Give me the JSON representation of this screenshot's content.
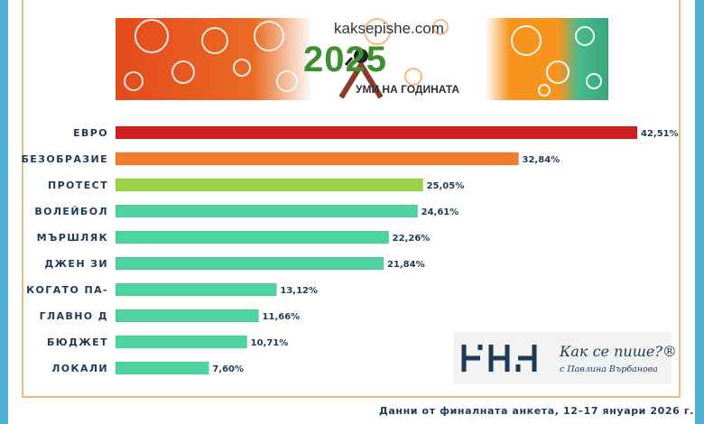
{
  "banner": {
    "site": "kaksepishe.com",
    "year": "2025",
    "tagline": "УМИ НА ГОДИНАТА"
  },
  "logo": {
    "title": "Как се пише?®",
    "subtitle": "с Павлина Върбанова"
  },
  "footer": "Данни от финалната анкета, 12–17 януари 2026 г.",
  "colors": {
    "background": "#4fb0d3",
    "frame": "#f0b98a",
    "text": "#1f3a56",
    "bar_red": "#d01f1f",
    "bar_orange": "#ef7d2a",
    "bar_lime": "#9bd24a",
    "bar_teal": "#4ed3a0"
  },
  "chart_data": {
    "type": "bar",
    "orientation": "horizontal",
    "categories": [
      "ЕВРО",
      "БЕЗОБРАЗИЕ",
      "ПРОТЕСТ",
      "ВОЛЕЙБОЛ",
      "МЪРШЛЯК",
      "ДЖЕН ЗИ",
      "КОГАТО ПА-",
      "ГЛАВНО Д",
      "БЮДЖЕТ",
      "ЛОКАЛИ"
    ],
    "values": [
      42.51,
      32.84,
      25.05,
      24.61,
      22.26,
      21.84,
      13.12,
      11.66,
      10.71,
      7.6
    ],
    "value_labels": [
      "42,51%",
      "32,84%",
      "25,05%",
      "24,61%",
      "22,26%",
      "21,84%",
      "13,12%",
      "11,66%",
      "10,71%",
      "7,60%"
    ],
    "bar_colors": [
      "#d01f1f",
      "#ef7d2a",
      "#9bd24a",
      "#4ed3a0",
      "#4ed3a0",
      "#4ed3a0",
      "#4ed3a0",
      "#4ed3a0",
      "#4ed3a0",
      "#4ed3a0"
    ],
    "title": "",
    "xlabel": "",
    "ylabel": "",
    "xlim": [
      0,
      42.51
    ],
    "grid": false,
    "legend": "none"
  }
}
